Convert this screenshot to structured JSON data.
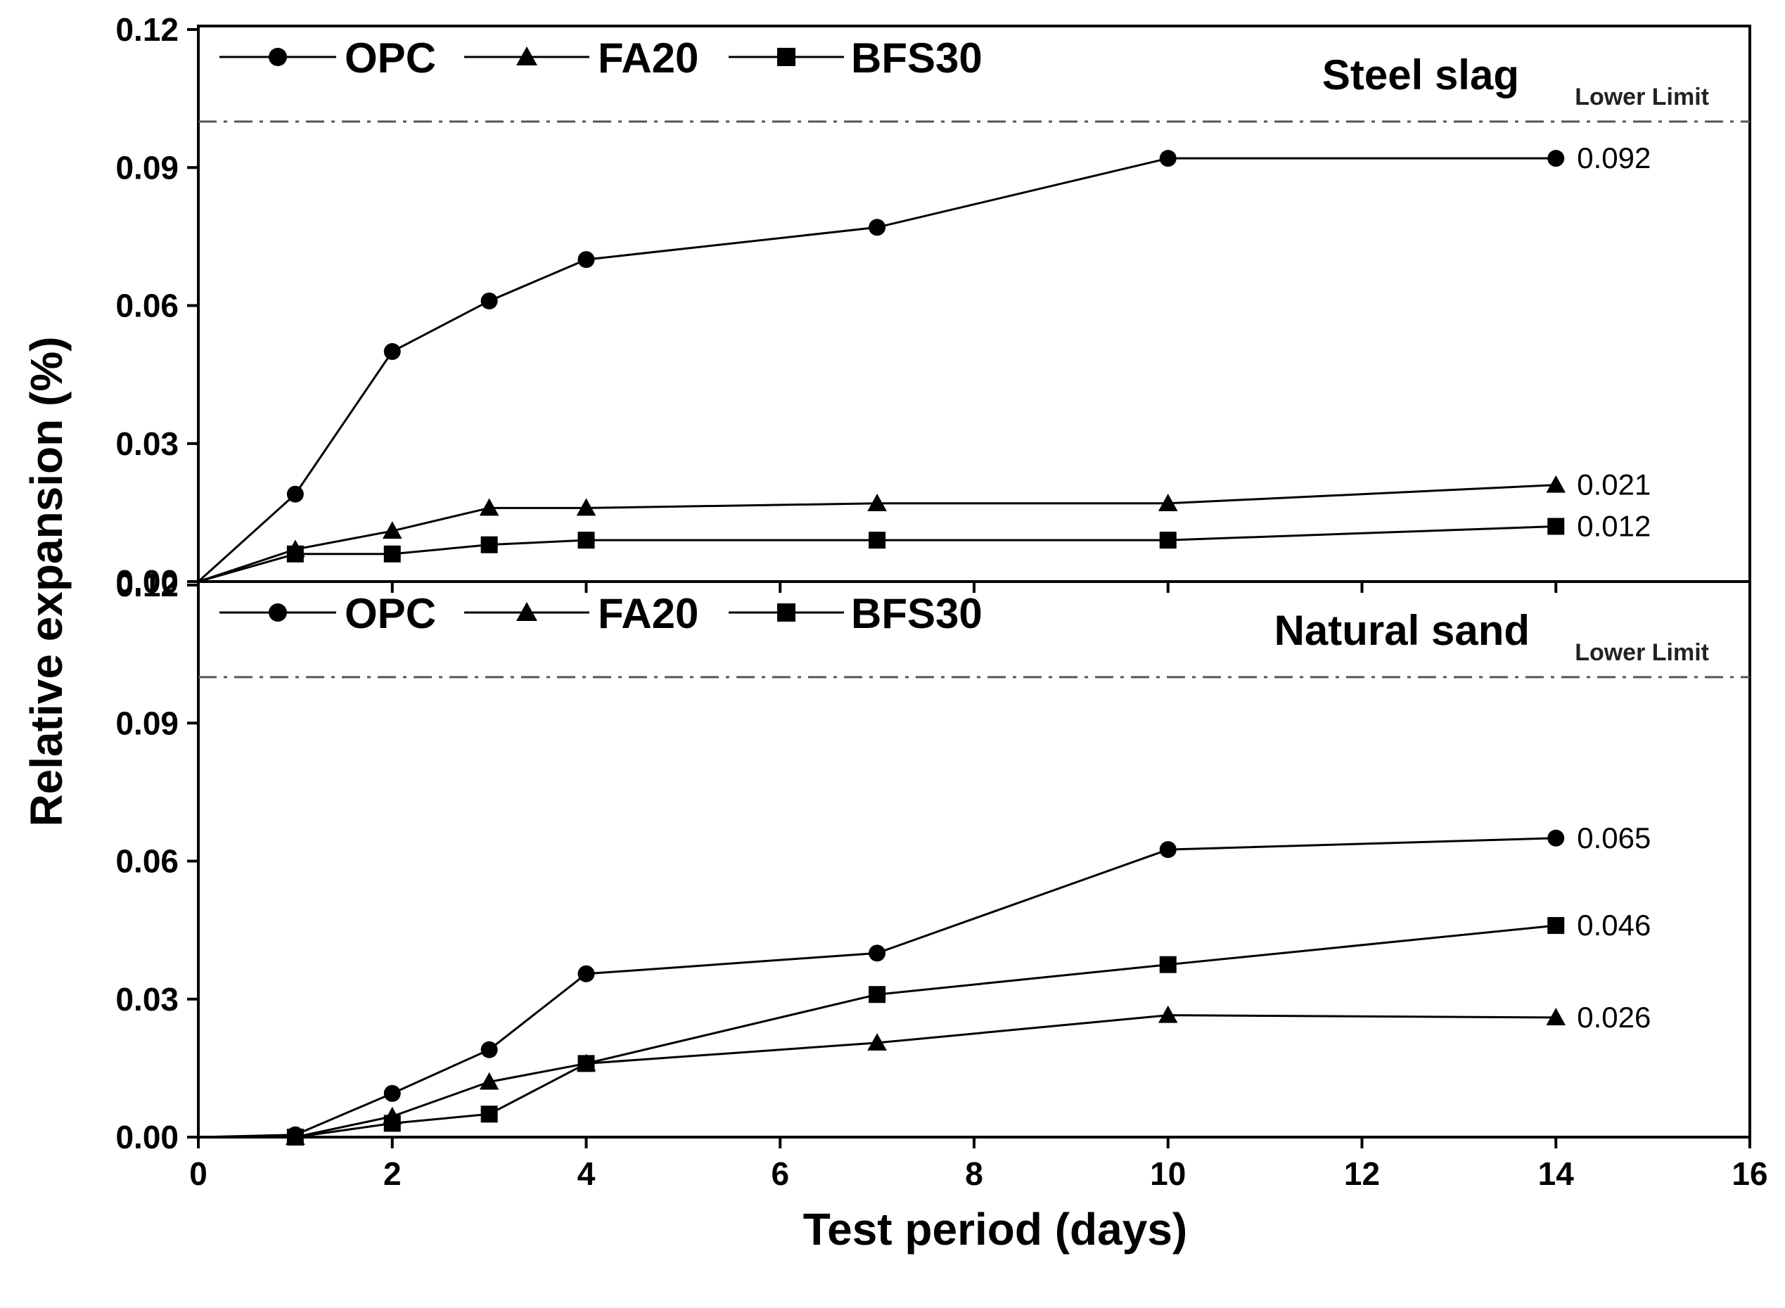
{
  "chart_data": [
    {
      "type": "line",
      "title": "Steel slag",
      "ylabel": "Relative expansion (%)",
      "xlabel": "Test period (days)",
      "xlim": [
        0,
        16
      ],
      "ylim": [
        0,
        0.12
      ],
      "x_ticks": [
        "0",
        "2",
        "4",
        "6",
        "8",
        "10",
        "12",
        "14",
        "16"
      ],
      "y_ticks": [
        "0.00",
        "0.03",
        "0.06",
        "0.09",
        "0.12"
      ],
      "limit": {
        "label": "Lower Limit",
        "value": 0.1
      },
      "legend": [
        "OPC",
        "FA20",
        "BFS30"
      ],
      "series": [
        {
          "name": "OPC",
          "marker": "circle",
          "x": [
            0,
            1,
            2,
            3,
            4,
            7,
            10,
            14
          ],
          "values": [
            0,
            0.019,
            0.05,
            0.061,
            0.07,
            0.077,
            0.092,
            0.092
          ],
          "end_label": "0.092"
        },
        {
          "name": "FA20",
          "marker": "triangle",
          "x": [
            0,
            1,
            2,
            3,
            4,
            7,
            10,
            14
          ],
          "values": [
            0,
            0.007,
            0.011,
            0.016,
            0.016,
            0.017,
            0.017,
            0.021
          ],
          "end_label": "0.021"
        },
        {
          "name": "BFS30",
          "marker": "square",
          "x": [
            0,
            1,
            2,
            3,
            4,
            7,
            10,
            14
          ],
          "values": [
            0,
            0.006,
            0.006,
            0.008,
            0.009,
            0.009,
            0.009,
            0.012
          ],
          "end_label": "0.012"
        }
      ]
    },
    {
      "type": "line",
      "title": "Natural sand",
      "ylabel": "Relative expansion (%)",
      "xlabel": "Test period (days)",
      "xlim": [
        0,
        16
      ],
      "ylim": [
        0,
        0.12
      ],
      "x_ticks": [
        "0",
        "2",
        "4",
        "6",
        "8",
        "10",
        "12",
        "14",
        "16"
      ],
      "y_ticks": [
        "0.00",
        "0.03",
        "0.06",
        "0.09",
        "0.12"
      ],
      "limit": {
        "label": "Lower Limit",
        "value": 0.1
      },
      "legend": [
        "OPC",
        "FA20",
        "BFS30"
      ],
      "series": [
        {
          "name": "OPC",
          "marker": "circle",
          "x": [
            0,
            1,
            2,
            3,
            4,
            7,
            10,
            14
          ],
          "values": [
            0,
            0.0005,
            0.0095,
            0.019,
            0.0355,
            0.04,
            0.0625,
            0.065
          ],
          "end_label": "0.065"
        },
        {
          "name": "FA20",
          "marker": "triangle",
          "x": [
            1,
            2,
            3,
            4,
            7,
            10,
            14
          ],
          "values": [
            0,
            0.0045,
            0.012,
            0.016,
            0.0205,
            0.0265,
            0.026
          ],
          "end_label": "0.026"
        },
        {
          "name": "BFS30",
          "marker": "square",
          "x": [
            1,
            2,
            3,
            4,
            7,
            10,
            14
          ],
          "values": [
            0,
            0.003,
            0.005,
            0.016,
            0.031,
            0.0375,
            0.046
          ],
          "end_label": "0.046"
        }
      ]
    }
  ]
}
